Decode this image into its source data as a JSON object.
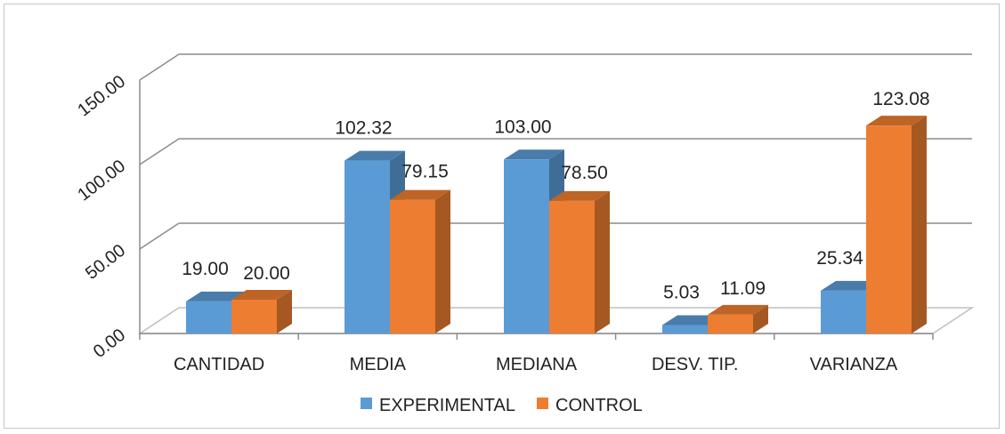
{
  "chart_data": {
    "type": "bar",
    "style": "3d-clustered-column",
    "categories": [
      "CANTIDAD",
      "MEDIA",
      "MEDIANA",
      "DESV. TIP.",
      "VARIANZA"
    ],
    "series": [
      {
        "name": "EXPERIMENTAL",
        "values": [
          19.0,
          102.32,
          103.0,
          5.03,
          25.34
        ],
        "labels": [
          "19.00",
          "102.32",
          "103.00",
          "5.03",
          "25.34"
        ],
        "color": "#5B9BD5"
      },
      {
        "name": "CONTROL",
        "values": [
          20.0,
          79.15,
          78.5,
          11.09,
          123.08
        ],
        "labels": [
          "20.00",
          "79.15",
          "78.50",
          "11.09",
          "123.08"
        ],
        "color": "#ED7D31"
      }
    ],
    "yticks": [
      "0.00",
      "50.00",
      "100.00",
      "150.00"
    ],
    "ylim": [
      0,
      150
    ],
    "grid": true,
    "legend": "bottom",
    "title": "",
    "xlabel": "",
    "ylabel": ""
  }
}
